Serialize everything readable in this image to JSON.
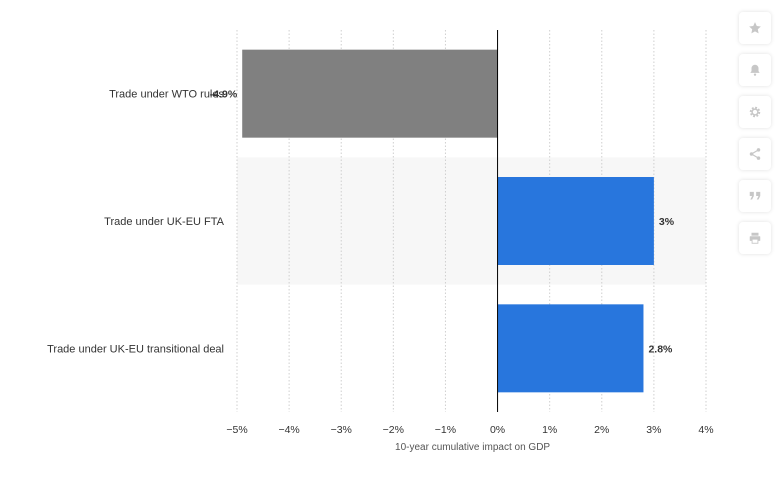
{
  "chart_data": {
    "type": "bar",
    "orientation": "horizontal",
    "categories": [
      "Trade under WTO rules",
      "Trade under UK-EU FTA",
      "Trade under UK-EU transitional deal"
    ],
    "values": [
      -4.9,
      3,
      2.8
    ],
    "value_labels": [
      "-4.9%",
      "3%",
      "2.8%"
    ],
    "bar_colors": [
      "#808080",
      "#2876dd",
      "#2876dd"
    ],
    "xlim": [
      -5,
      4
    ],
    "xticks": [
      -5,
      -4,
      -3,
      -2,
      -1,
      0,
      1,
      2,
      3,
      4
    ],
    "xtick_labels": [
      "−5%",
      "−4%",
      "−3%",
      "−2%",
      "−1%",
      "0%",
      "1%",
      "2%",
      "3%",
      "4%"
    ],
    "xlabel": "10-year cumulative impact on GDP",
    "grid": true,
    "alternating_row_shading": true
  },
  "colors": {
    "negative_bar": "#808080",
    "positive_bar": "#2876dd",
    "grid": "#cfcfcf",
    "band": "#f7f7f7",
    "zero_line": "#000000"
  },
  "toolbar": {
    "buttons": [
      {
        "icon": "star-icon"
      },
      {
        "icon": "bell-icon"
      },
      {
        "icon": "gear-icon"
      },
      {
        "icon": "share-icon"
      },
      {
        "icon": "quote-icon"
      },
      {
        "icon": "print-icon"
      }
    ]
  }
}
